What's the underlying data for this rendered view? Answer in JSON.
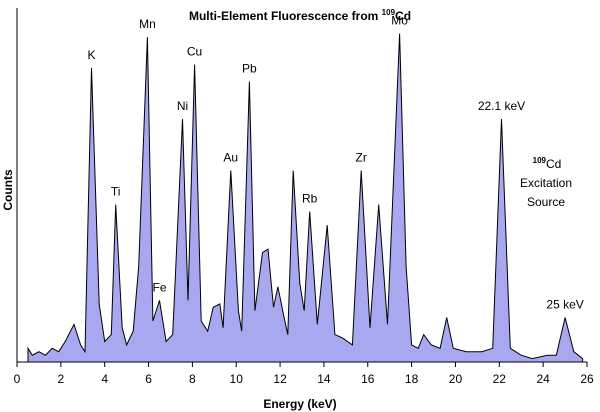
{
  "chart_data": {
    "type": "area",
    "title_prefix": "Multi-Element Fluorescence from ",
    "title_superscript": "109",
    "title_suffix": "Cd",
    "xlabel": "Energy (keV)",
    "ylabel": "Counts",
    "xlim": [
      0,
      26
    ],
    "ylim": [
      0,
      100
    ],
    "x_ticks": [
      0,
      2,
      4,
      6,
      8,
      10,
      12,
      14,
      16,
      18,
      20,
      22,
      24,
      26
    ],
    "grid": false,
    "legend": false,
    "colors": {
      "fill": "#a8a8f0",
      "line": "#000000"
    },
    "series": [
      {
        "values": [
          [
            0.5,
            4
          ],
          [
            0.7,
            2
          ],
          [
            1.0,
            3
          ],
          [
            1.3,
            2
          ],
          [
            1.6,
            4
          ],
          [
            1.9,
            3
          ],
          [
            2.2,
            6
          ],
          [
            2.6,
            11
          ],
          [
            2.9,
            5
          ],
          [
            3.1,
            3
          ],
          [
            3.4,
            86
          ],
          [
            3.75,
            17
          ],
          [
            4.0,
            6
          ],
          [
            4.3,
            8
          ],
          [
            4.5,
            46
          ],
          [
            4.8,
            10
          ],
          [
            5.0,
            5
          ],
          [
            5.3,
            9
          ],
          [
            5.55,
            28
          ],
          [
            5.95,
            95
          ],
          [
            6.2,
            12
          ],
          [
            6.5,
            18
          ],
          [
            6.8,
            6
          ],
          [
            7.1,
            8
          ],
          [
            7.55,
            71
          ],
          [
            7.8,
            18
          ],
          [
            8.1,
            87
          ],
          [
            8.4,
            12
          ],
          [
            8.7,
            9
          ],
          [
            8.95,
            16
          ],
          [
            9.25,
            17
          ],
          [
            9.4,
            10
          ],
          [
            9.75,
            56
          ],
          [
            10.1,
            15
          ],
          [
            10.25,
            9
          ],
          [
            10.6,
            82
          ],
          [
            10.85,
            15
          ],
          [
            11.2,
            32
          ],
          [
            11.45,
            33
          ],
          [
            11.7,
            16
          ],
          [
            11.9,
            22
          ],
          [
            12.15,
            14
          ],
          [
            12.35,
            8
          ],
          [
            12.6,
            56
          ],
          [
            12.9,
            23
          ],
          [
            13.1,
            15
          ],
          [
            13.35,
            44
          ],
          [
            13.7,
            11
          ],
          [
            14.15,
            40
          ],
          [
            14.5,
            8
          ],
          [
            14.85,
            7
          ],
          [
            15.3,
            5
          ],
          [
            15.7,
            56
          ],
          [
            16.1,
            10
          ],
          [
            16.5,
            46
          ],
          [
            16.9,
            11
          ],
          [
            17.45,
            96
          ],
          [
            17.75,
            28
          ],
          [
            18.0,
            5
          ],
          [
            18.3,
            4
          ],
          [
            18.55,
            8
          ],
          [
            18.9,
            5
          ],
          [
            19.3,
            4
          ],
          [
            19.6,
            13
          ],
          [
            19.9,
            4
          ],
          [
            20.5,
            3
          ],
          [
            21.2,
            3
          ],
          [
            21.7,
            4
          ],
          [
            22.1,
            71
          ],
          [
            22.5,
            4
          ],
          [
            23.0,
            2
          ],
          [
            23.5,
            1
          ],
          [
            24.2,
            2
          ],
          [
            24.6,
            2
          ],
          [
            25.0,
            13
          ],
          [
            25.4,
            3
          ],
          [
            25.8,
            1
          ]
        ]
      }
    ],
    "peak_labels": [
      {
        "text": "K",
        "x": 3.4,
        "y": 86
      },
      {
        "text": "Ti",
        "x": 4.5,
        "y": 46
      },
      {
        "text": "Mn",
        "x": 5.95,
        "y": 95
      },
      {
        "text": "Fe",
        "x": 6.5,
        "y": 18
      },
      {
        "text": "Ni",
        "x": 7.55,
        "y": 71
      },
      {
        "text": "Cu",
        "x": 8.1,
        "y": 87
      },
      {
        "text": "Au",
        "x": 9.75,
        "y": 56
      },
      {
        "text": "Pb",
        "x": 10.6,
        "y": 82
      },
      {
        "text": "Rb",
        "x": 13.35,
        "y": 44
      },
      {
        "text": "Zr",
        "x": 15.7,
        "y": 56
      },
      {
        "text": "Mo",
        "x": 17.45,
        "y": 96
      },
      {
        "text": "22.1 keV",
        "x": 22.1,
        "y": 71
      },
      {
        "text": "25 keV",
        "x": 25.0,
        "y": 13
      }
    ],
    "source_note": {
      "superscript": "109",
      "line1": "Cd",
      "line2": "Excitation",
      "line3": "Source"
    }
  }
}
